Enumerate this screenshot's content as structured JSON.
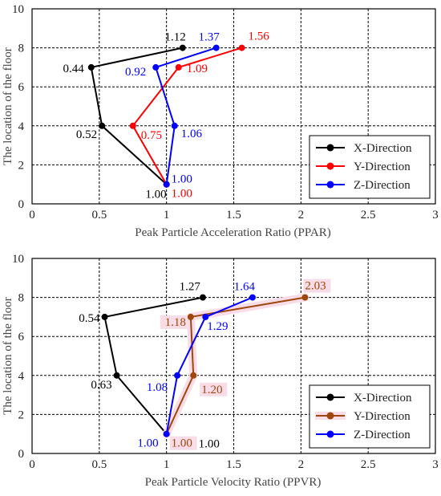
{
  "chart_data": [
    {
      "type": "line",
      "xlabel": "Peak Particle Acceleration Ratio (PPAR)",
      "ylabel": "The location of the floor",
      "xlim": [
        0,
        3
      ],
      "ylim": [
        0,
        10
      ],
      "xticks": [
        "0",
        "0.5",
        "1",
        "1.5",
        "2",
        "2.5",
        "3"
      ],
      "yticks": [
        "0",
        "2",
        "4",
        "6",
        "8",
        "10"
      ],
      "grid": true,
      "legend_position": "bottom-right",
      "series": [
        {
          "name": "X-Direction",
          "color": "#000000",
          "points": [
            {
              "x": 1.0,
              "y": 1
            },
            {
              "x": 0.52,
              "y": 4
            },
            {
              "x": 0.44,
              "y": 7
            },
            {
              "x": 1.12,
              "y": 8
            }
          ],
          "labels": [
            {
              "text": "1.00",
              "x": 1.0,
              "y": 1
            },
            {
              "text": "0.52",
              "x": 0.52,
              "y": 4
            },
            {
              "text": "0.44",
              "x": 0.44,
              "y": 7
            },
            {
              "text": "1.12",
              "x": 1.12,
              "y": 8
            }
          ]
        },
        {
          "name": "Y-Direction",
          "color": "#ff0000",
          "points": [
            {
              "x": 1.0,
              "y": 1
            },
            {
              "x": 0.75,
              "y": 4
            },
            {
              "x": 1.09,
              "y": 7
            },
            {
              "x": 1.56,
              "y": 8
            }
          ],
          "labels": [
            {
              "text": "1.00",
              "x": 1.0,
              "y": 1
            },
            {
              "text": "0.75",
              "x": 0.75,
              "y": 4
            },
            {
              "text": "1.09",
              "x": 1.09,
              "y": 7
            },
            {
              "text": "1.56",
              "x": 1.56,
              "y": 8
            }
          ]
        },
        {
          "name": "Z-Direction",
          "color": "#0000ff",
          "points": [
            {
              "x": 1.0,
              "y": 1
            },
            {
              "x": 1.06,
              "y": 4
            },
            {
              "x": 0.92,
              "y": 7
            },
            {
              "x": 1.37,
              "y": 8
            }
          ],
          "labels": [
            {
              "text": "1.00",
              "x": 1.0,
              "y": 1
            },
            {
              "text": "1.06",
              "x": 1.06,
              "y": 4
            },
            {
              "text": "0.92",
              "x": 0.92,
              "y": 7
            },
            {
              "text": "1.37",
              "x": 1.37,
              "y": 8
            }
          ]
        }
      ]
    },
    {
      "type": "line",
      "xlabel": "Peak Particle Velocity Ratio (PPVR)",
      "ylabel": "The location of the floor",
      "xlim": [
        0,
        3
      ],
      "ylim": [
        0,
        10
      ],
      "xticks": [
        "0",
        "0.5",
        "1",
        "1.5",
        "2",
        "2.5",
        "3"
      ],
      "yticks": [
        "0",
        "2",
        "4",
        "6",
        "8",
        "10"
      ],
      "grid": true,
      "legend_position": "bottom-right",
      "series": [
        {
          "name": "X-Direction",
          "color": "#000000",
          "points": [
            {
              "x": 1.0,
              "y": 1
            },
            {
              "x": 0.63,
              "y": 4
            },
            {
              "x": 0.54,
              "y": 7
            },
            {
              "x": 1.27,
              "y": 8
            }
          ],
          "labels": [
            {
              "text": "1.00",
              "x": 1.0,
              "y": 1
            },
            {
              "text": "0.63",
              "x": 0.63,
              "y": 4
            },
            {
              "text": "0.54",
              "x": 0.54,
              "y": 7
            },
            {
              "text": "1.27",
              "x": 1.27,
              "y": 8
            }
          ]
        },
        {
          "name": "Y-Direction",
          "color": "#a0460a",
          "highlight": "#f8dde8",
          "points": [
            {
              "x": 1.0,
              "y": 1
            },
            {
              "x": 1.2,
              "y": 4
            },
            {
              "x": 1.18,
              "y": 7
            },
            {
              "x": 2.03,
              "y": 8
            }
          ],
          "labels": [
            {
              "text": "1.00",
              "x": 1.0,
              "y": 1
            },
            {
              "text": "1.20",
              "x": 1.2,
              "y": 4
            },
            {
              "text": "1.18",
              "x": 1.18,
              "y": 7
            },
            {
              "text": "2.03",
              "x": 2.03,
              "y": 8
            }
          ]
        },
        {
          "name": "Z-Direction",
          "color": "#0000ff",
          "points": [
            {
              "x": 1.0,
              "y": 1
            },
            {
              "x": 1.08,
              "y": 4
            },
            {
              "x": 1.29,
              "y": 7
            },
            {
              "x": 1.64,
              "y": 8
            }
          ],
          "labels": [
            {
              "text": "1.00",
              "x": 1.0,
              "y": 1
            },
            {
              "text": "1.08",
              "x": 1.08,
              "y": 4
            },
            {
              "text": "1.29",
              "x": 1.29,
              "y": 7
            },
            {
              "text": "1.64",
              "x": 1.64,
              "y": 8
            }
          ]
        }
      ]
    }
  ]
}
